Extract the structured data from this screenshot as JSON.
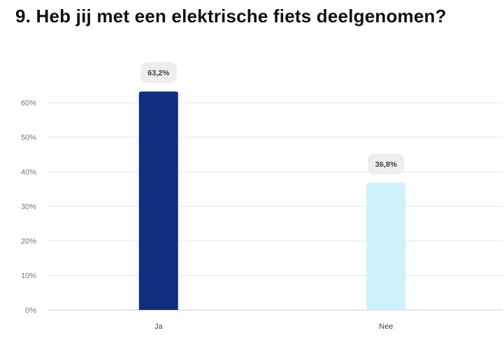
{
  "title": "9. Heb jij met een elektrische fiets deelgenomen?",
  "chart_data": {
    "type": "bar",
    "title": "9. Heb jij met een elektrische fiets deelgenomen?",
    "categories": [
      "Ja",
      "Nee"
    ],
    "values": [
      63.2,
      36.8
    ],
    "data_labels": [
      "63,2%",
      "36,8%"
    ],
    "colors": [
      "#112f80",
      "#cff1fa"
    ],
    "xlabel": "",
    "ylabel": "",
    "ylim": [
      0,
      60
    ],
    "yticks": [
      0,
      10,
      20,
      30,
      40,
      50,
      60
    ],
    "ytick_labels": [
      "0%",
      "10%",
      "20%",
      "30%",
      "40%",
      "50%",
      "60%"
    ],
    "grid": true,
    "legend": "none"
  }
}
